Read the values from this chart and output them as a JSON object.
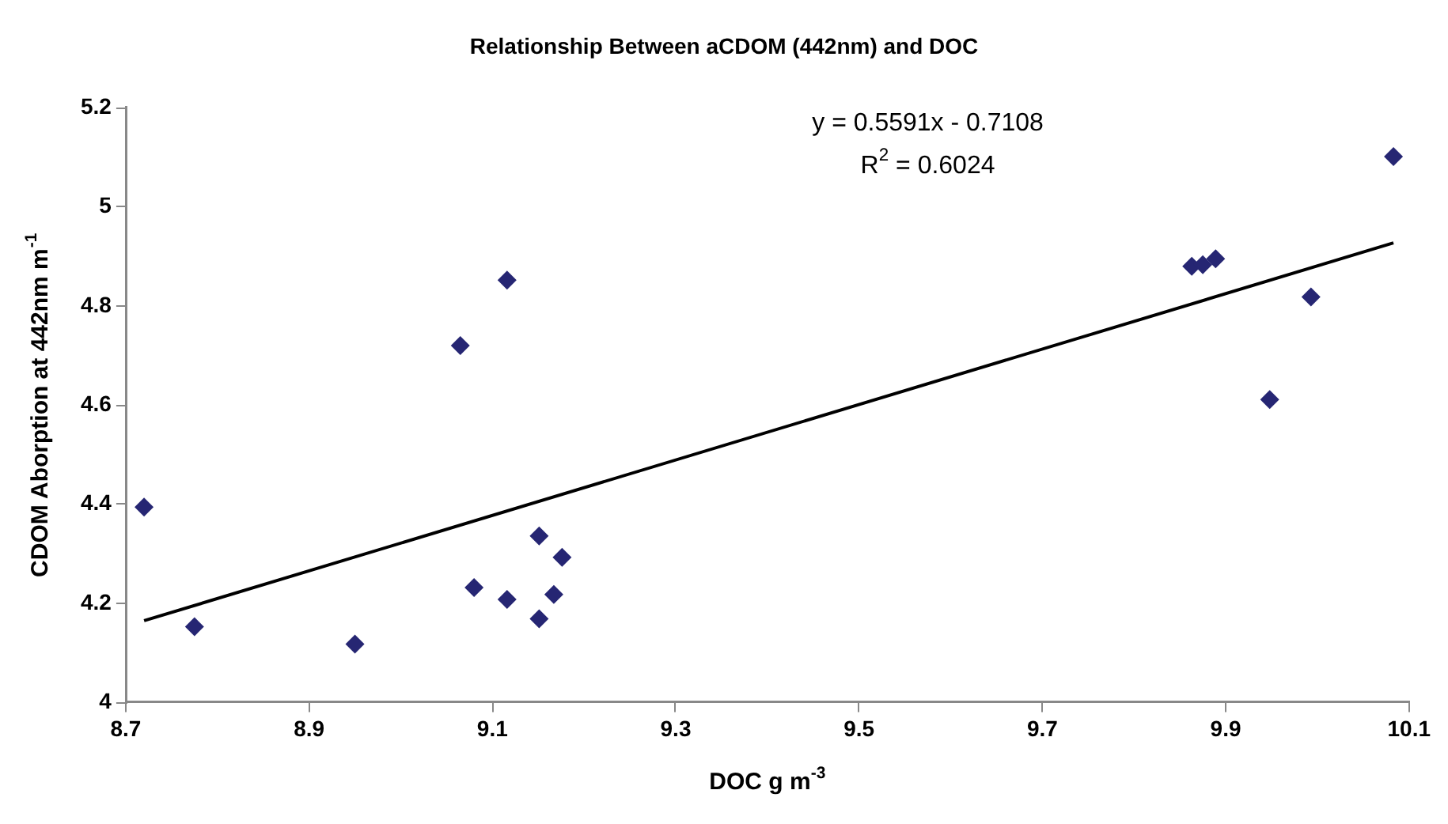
{
  "chart_data": {
    "type": "scatter",
    "title": "Relationship Between aCDOM (442nm) and DOC",
    "xlabel": "DOC g m$^{-3}$",
    "ylabel": "CDOM Aborption at 442nm m$^{-1}$",
    "series": [
      {
        "color": "#262673",
        "marker": "diamond",
        "x": [
          8.72,
          8.775,
          8.95,
          9.065,
          9.116,
          9.08,
          9.116,
          9.151,
          9.176,
          9.151,
          9.167,
          9.863,
          9.875,
          9.889,
          9.993,
          9.948,
          10.083
        ],
        "values": [
          4.394,
          4.153,
          4.118,
          4.72,
          4.852,
          4.232,
          4.208,
          4.336,
          4.293,
          4.169,
          4.218,
          4.88,
          4.883,
          4.895,
          4.818,
          4.611,
          5.101
        ]
      },
      {
        "type": "line",
        "color": "#000000",
        "marker": "none",
        "line_style": "solid",
        "x": [
          8.72,
          10.083
        ],
        "values": [
          4.165,
          4.927
        ]
      }
    ],
    "xlim": [
      8.7,
      10.1
    ],
    "xticks": [
      8.7,
      8.9,
      9.1,
      9.3,
      9.5,
      9.7,
      9.9,
      10.1
    ],
    "ylim": [
      4,
      5.2
    ],
    "yticks": [
      4,
      4.2,
      4.4,
      4.6,
      4.8,
      5,
      5.2
    ],
    "grid": false,
    "legend": false,
    "annotations": [
      "y = 0.5591x - 0.7108",
      "R$^{2}$ = 0.6024"
    ]
  }
}
